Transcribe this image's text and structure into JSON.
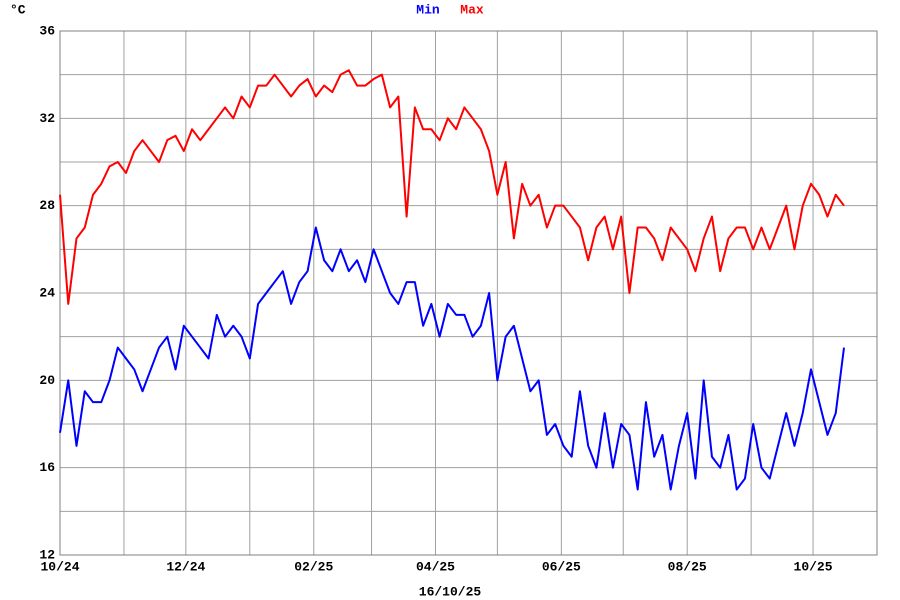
{
  "chart_data": {
    "type": "line",
    "y_label": "°C",
    "footer": "16/10/25",
    "x": [
      0,
      4,
      8,
      12,
      16,
      20,
      24,
      28,
      32,
      36,
      40,
      44,
      48,
      52,
      56,
      60,
      64,
      68,
      72,
      76,
      80,
      84,
      88,
      92,
      96,
      100,
      104,
      108,
      112,
      116,
      120,
      124,
      128,
      132,
      136,
      140,
      144,
      148,
      152,
      156,
      160,
      164,
      168,
      172,
      176,
      180,
      184,
      188,
      192,
      196,
      200,
      204,
      208,
      212,
      216,
      220,
      224,
      228,
      232,
      236,
      240,
      244,
      248,
      252,
      256,
      260,
      264,
      268,
      272,
      276,
      280,
      284,
      288,
      292,
      296,
      300,
      304,
      308,
      312,
      316,
      320,
      324,
      328,
      332,
      336,
      340,
      344,
      348,
      352,
      356,
      360,
      364,
      368,
      372,
      376,
      380
    ],
    "series": [
      {
        "name": "Min",
        "color": "#0000ff",
        "values": [
          17.6,
          20,
          17,
          19.5,
          19,
          19,
          20,
          21.5,
          21,
          20.5,
          19.5,
          20.5,
          21.5,
          22,
          20.5,
          22.5,
          22,
          21.5,
          21,
          23,
          22,
          22.5,
          22,
          21,
          23.5,
          24,
          24.5,
          25,
          23.5,
          24.5,
          25,
          27,
          25.5,
          25,
          26,
          25,
          25.5,
          24.5,
          26,
          25,
          24,
          23.5,
          24.5,
          24.5,
          22.5,
          23.5,
          22,
          23.5,
          23,
          23,
          22,
          22.5,
          24,
          20,
          22,
          22.5,
          21,
          19.5,
          20,
          17.5,
          18,
          17,
          16.5,
          19.5,
          17,
          16,
          18.5,
          16,
          18,
          17.5,
          15,
          19,
          16.5,
          17.5,
          15,
          17,
          18.5,
          15.5,
          20,
          16.5,
          16,
          17.5,
          15,
          15.5,
          18,
          16,
          15.5,
          17,
          18.5,
          17,
          18.5,
          20.5,
          19,
          17.5,
          18.5,
          21.5
        ]
      },
      {
        "name": "Max",
        "color": "#ff0000",
        "values": [
          28.5,
          23.5,
          26.5,
          27,
          28.5,
          29,
          29.8,
          30,
          29.5,
          30.5,
          31,
          30.5,
          30,
          31,
          31.2,
          30.5,
          31.5,
          31,
          31.5,
          32,
          32.5,
          32,
          33,
          32.5,
          33.5,
          33.5,
          34,
          33.5,
          33,
          33.5,
          33.8,
          33,
          33.5,
          33.2,
          34,
          34.2,
          33.5,
          33.5,
          33.8,
          34,
          32.5,
          33,
          27.5,
          32.5,
          31.5,
          31.5,
          31,
          32,
          31.5,
          32.5,
          32,
          31.5,
          30.5,
          28.5,
          30,
          26.5,
          29,
          28,
          28.5,
          27,
          28,
          28,
          27.5,
          27,
          25.5,
          27,
          27.5,
          26,
          27.5,
          24,
          27,
          27,
          26.5,
          25.5,
          27,
          26.5,
          26,
          25,
          26.5,
          27.5,
          25,
          26.5,
          27,
          27,
          26,
          27,
          26,
          27,
          28,
          26,
          28,
          29,
          28.5,
          27.5,
          28.5,
          28
        ]
      }
    ],
    "xlim": [
      0,
      396
    ],
    "xticks": [
      {
        "value": 0,
        "label": "10/24"
      },
      {
        "value": 61,
        "label": "12/24"
      },
      {
        "value": 123,
        "label": "02/25"
      },
      {
        "value": 182,
        "label": "04/25"
      },
      {
        "value": 243,
        "label": "06/25"
      },
      {
        "value": 304,
        "label": "08/25"
      },
      {
        "value": 365,
        "label": "10/25"
      }
    ],
    "xminor": [
      31,
      92,
      151,
      212,
      273,
      335,
      396
    ],
    "ylim": [
      12,
      36
    ],
    "yticks": [
      12,
      16,
      20,
      24,
      28,
      32,
      36
    ],
    "yminor": [
      14,
      18,
      22,
      26,
      30,
      34
    ],
    "grid": true
  }
}
